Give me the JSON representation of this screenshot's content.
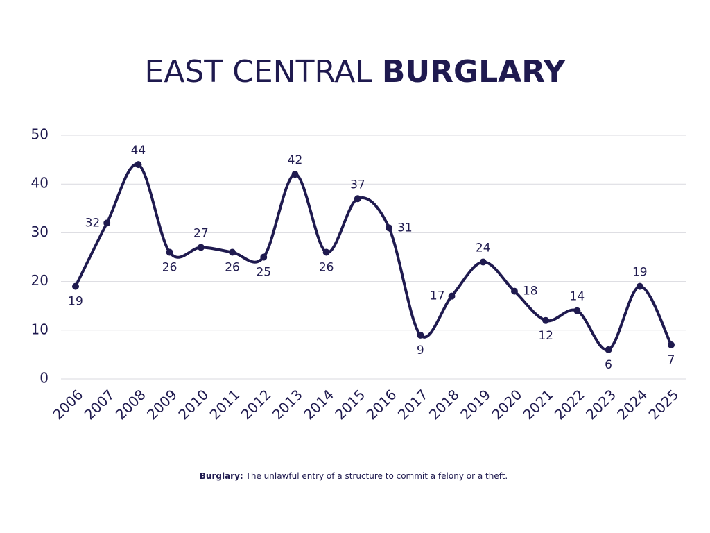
{
  "chart_data": {
    "type": "line",
    "title": {
      "regular": "EAST CENTRAL",
      "bold": "BURGLARY"
    },
    "footnote": {
      "term": "Burglary:",
      "definition": "The unlawful entry of a structure to commit a felony or a theft."
    },
    "categories": [
      "2006",
      "2007",
      "2008",
      "2009",
      "2010",
      "2011",
      "2012",
      "2013",
      "2014",
      "2015",
      "2016",
      "2017",
      "2018",
      "2019",
      "2020",
      "2021",
      "2022",
      "2023",
      "2024",
      "2025"
    ],
    "values": [
      19,
      32,
      44,
      26,
      27,
      26,
      25,
      42,
      26,
      37,
      31,
      9,
      17,
      24,
      18,
      12,
      14,
      6,
      19,
      7
    ],
    "color": "#1f1a4f",
    "ylim": [
      0,
      50
    ],
    "yticks": [
      0,
      10,
      20,
      30,
      40,
      50
    ],
    "grid": true
  }
}
